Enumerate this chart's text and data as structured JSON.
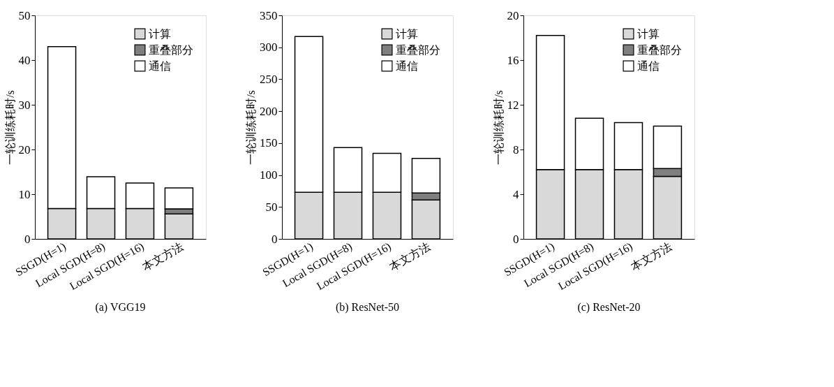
{
  "chart_data": [
    {
      "type": "bar",
      "stacked": true,
      "title": "(a) VGG19",
      "ylabel": "一轮训练耗时/s",
      "categories": [
        "SSGD(H=1)",
        "Local SGD(H=8)",
        "Local SGD(H=16)",
        "本文方法"
      ],
      "ylim": [
        0,
        50
      ],
      "yticks": [
        0,
        10,
        20,
        30,
        40,
        50
      ],
      "grid": false,
      "legend": "top right",
      "series": [
        {
          "name": "计算",
          "color": "#d9d9d9",
          "values": [
            6.8,
            6.8,
            6.8,
            5.6
          ]
        },
        {
          "name": "重叠部分",
          "color": "#7f7f7f",
          "values": [
            null,
            null,
            null,
            1.1
          ]
        },
        {
          "name": "通信",
          "color": "#ffffff",
          "values": [
            36.2,
            7.1,
            5.7,
            4.7
          ]
        }
      ]
    },
    {
      "type": "bar",
      "stacked": true,
      "title": "(b) ResNet-50",
      "ylabel": "一轮训练耗时/s",
      "categories": [
        "SSGD(H=1)",
        "Local SGD(H=8)",
        "Local SGD(H=16)",
        "本文方法"
      ],
      "ylim": [
        0,
        350
      ],
      "yticks": [
        0,
        50,
        100,
        150,
        200,
        250,
        300,
        350
      ],
      "grid": false,
      "legend": "top right",
      "series": [
        {
          "name": "计算",
          "color": "#d9d9d9",
          "values": [
            73,
            73,
            73,
            61
          ]
        },
        {
          "name": "重叠部分",
          "color": "#7f7f7f",
          "values": [
            null,
            null,
            null,
            11
          ]
        },
        {
          "name": "通信",
          "color": "#ffffff",
          "values": [
            244,
            70,
            61,
            54
          ]
        }
      ]
    },
    {
      "type": "bar",
      "stacked": true,
      "title": "(c) ResNet-20",
      "ylabel": "一轮训练耗时/s",
      "categories": [
        "SSGD(H=1)",
        "Local SGD(H=8)",
        "Local SGD(H=16)",
        "本文方法"
      ],
      "ylim": [
        0,
        20
      ],
      "yticks": [
        0,
        4,
        8,
        12,
        16,
        20
      ],
      "grid": false,
      "legend": "top right",
      "series": [
        {
          "name": "计算",
          "color": "#d9d9d9",
          "values": [
            6.2,
            6.2,
            6.2,
            5.6
          ]
        },
        {
          "name": "重叠部分",
          "color": "#7f7f7f",
          "values": [
            null,
            null,
            null,
            0.7
          ]
        },
        {
          "name": "通信",
          "color": "#ffffff",
          "values": [
            12.0,
            4.6,
            4.2,
            3.8
          ]
        }
      ]
    }
  ]
}
